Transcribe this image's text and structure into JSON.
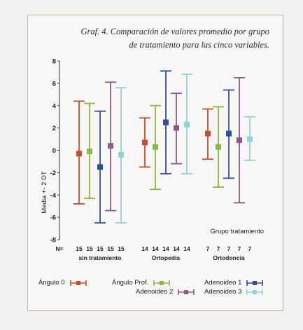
{
  "title": {
    "line1": "Graf. 4. Comparación de valores promedio por grupo",
    "line2": "de tratamiento para las cinco variables."
  },
  "chart_data": {
    "type": "error_bar",
    "ylabel": "Media +- 2 DT",
    "ylim": [
      -8,
      8
    ],
    "yticks": [
      "-8",
      "-6",
      "-4",
      "-2",
      "0",
      "2",
      "4",
      "6",
      "8"
    ],
    "n_label": "N=",
    "xaxis_title": "Grupo tratamiento",
    "groups": [
      {
        "name": "sin tratamiento",
        "n": [
          "15",
          "15",
          "15",
          "15",
          "15"
        ]
      },
      {
        "name": "Ortopedia",
        "n": [
          "14",
          "14",
          "14",
          "14",
          "14"
        ]
      },
      {
        "name": "Ortodoncia",
        "n": [
          "7",
          "7",
          "7",
          "7",
          "7"
        ]
      }
    ],
    "series": [
      {
        "name": "Ángulo 0",
        "color": "#c0502e",
        "mean": [
          -0.3,
          0.7,
          1.5
        ],
        "low": [
          -4.8,
          -1.5,
          -0.8
        ],
        "high": [
          4.4,
          2.9,
          3.7
        ]
      },
      {
        "name": "Ángulo Prof.",
        "color": "#8db54a",
        "mean": [
          -0.1,
          0.3,
          0.3
        ],
        "low": [
          -4.3,
          -3.5,
          -3.3
        ],
        "high": [
          4.2,
          4.0,
          3.9
        ]
      },
      {
        "name": "Adenoideo 1",
        "color": "#2f4f9c",
        "mean": [
          -1.5,
          2.5,
          1.5
        ],
        "low": [
          -6.5,
          -2.1,
          -2.5
        ],
        "high": [
          3.5,
          7.1,
          5.4
        ]
      },
      {
        "name": "Adenoideo 2",
        "color": "#8a5a8c",
        "mean": [
          0.4,
          2.0,
          0.9
        ],
        "low": [
          -5.4,
          -1.2,
          -4.7
        ],
        "high": [
          6.1,
          5.1,
          6.5
        ]
      },
      {
        "name": "Adenoideo 3",
        "color": "#8fd3d5",
        "mean": [
          -0.4,
          2.3,
          1.0
        ],
        "low": [
          -6.5,
          -2.1,
          -0.9
        ],
        "high": [
          5.6,
          6.8,
          3.0
        ]
      }
    ]
  }
}
